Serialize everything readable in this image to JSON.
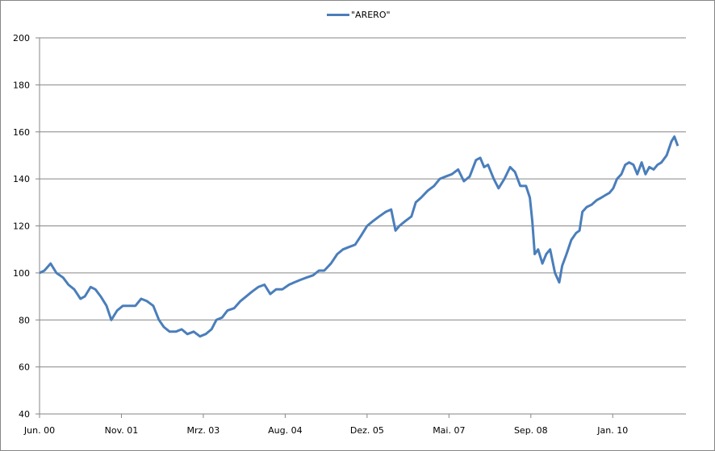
{
  "chart_data": {
    "type": "line",
    "title": "",
    "xlabel": "",
    "ylabel": "",
    "ylim": [
      40,
      200
    ],
    "yticks": [
      40,
      60,
      80,
      100,
      120,
      140,
      160,
      180,
      200
    ],
    "xlim": [
      0,
      134.2
    ],
    "x_unit": "months since Jun. 2000",
    "xtick_positions": [
      0,
      17,
      34,
      51,
      68,
      85,
      102,
      119
    ],
    "xtick_labels": [
      "Jun. 00",
      "Nov. 01",
      "Mrz. 03",
      "Aug. 04",
      "Dez. 05",
      "Mai. 07",
      "Sep. 08",
      "Jan. 10"
    ],
    "grid": true,
    "legend_position": "top-center",
    "colors": {
      "series": "#4a7ebb",
      "grid": "#868686"
    },
    "series": [
      {
        "name": "\"ARERO\"",
        "x": [
          0,
          1,
          2.3,
          3.5,
          4.9,
          6,
          7.2,
          8.5,
          9.4,
          10.6,
          11.6,
          12.7,
          13.9,
          14.9,
          16.1,
          17.3,
          18.6,
          19.9,
          21.1,
          22.3,
          23.6,
          24.8,
          25.8,
          27,
          28.3,
          29.5,
          30.7,
          32,
          33.3,
          34.5,
          35.7,
          36.7,
          37.9,
          39,
          40.4,
          41.7,
          42.9,
          44.1,
          45.4,
          46.7,
          47.9,
          49.1,
          50.4,
          51.8,
          52.9,
          54.1,
          55.4,
          56.8,
          58,
          59.1,
          60.5,
          61.8,
          63,
          64.2,
          65.5,
          66.8,
          68,
          69.2,
          70.5,
          71.9,
          73,
          73.9,
          74.7,
          75.9,
          77.2,
          78.1,
          79.2,
          80.6,
          81.9,
          83.1,
          84.3,
          85.6,
          86.9,
          88.1,
          89.3,
          90.6,
          91.5,
          92.3,
          93.1,
          94.3,
          95.3,
          96.5,
          97.7,
          98.7,
          99.8,
          101,
          101.8,
          102.3,
          102.8,
          103.5,
          104.4,
          105.2,
          106,
          107,
          107.9,
          108.5,
          109.4,
          110.4,
          111.4,
          112.1,
          112.7,
          113.6,
          114.6,
          115.7,
          116.6,
          117.4,
          118.3,
          119.1,
          119.9,
          120.8,
          121.6,
          122.4,
          123.3,
          124.1,
          125,
          125.8,
          126.6,
          127.5,
          128.3,
          129.1,
          130.2,
          131.2,
          131.8,
          132.5
        ],
        "values": [
          100,
          101,
          104,
          100,
          98,
          95,
          93,
          89,
          90,
          94,
          93,
          90,
          86,
          80,
          84,
          86,
          86,
          86,
          89,
          88,
          86,
          80,
          77,
          75,
          75,
          76,
          74,
          75,
          73,
          74,
          76,
          80,
          81,
          84,
          85,
          88,
          90,
          92,
          94,
          95,
          91,
          93,
          93,
          95,
          96,
          97,
          98,
          99,
          101,
          101,
          104,
          108,
          110,
          111,
          112,
          116,
          120,
          122,
          124,
          126,
          127,
          118,
          120,
          122,
          124,
          130,
          132,
          135,
          137,
          140,
          141,
          142,
          144,
          139,
          141,
          148,
          149,
          145,
          146,
          140,
          136,
          140,
          145,
          143,
          137,
          137,
          132,
          122,
          108,
          110,
          104,
          108,
          110,
          100,
          96,
          103,
          108,
          114,
          117,
          118,
          126,
          128,
          129,
          131,
          132,
          133,
          134,
          136,
          140,
          142,
          146,
          147,
          146,
          142,
          147,
          142,
          145,
          144,
          146,
          147,
          150,
          156,
          158,
          154
        ]
      }
    ]
  }
}
